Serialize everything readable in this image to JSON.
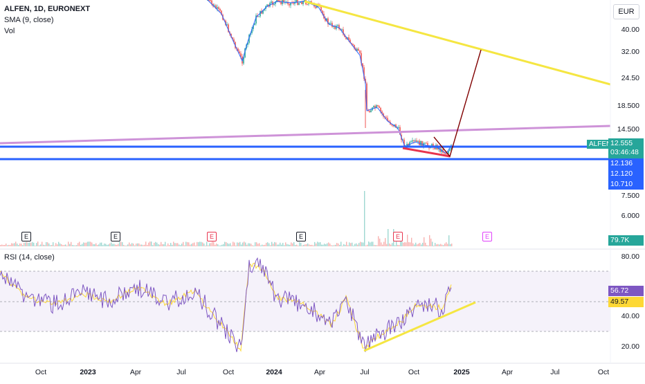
{
  "header": {
    "symbol_line": "ALFEN, 1D, EURONEXT",
    "sma_label": "SMA (9, close)",
    "vol_label": "Vol",
    "currency": "EUR"
  },
  "price_axis": [
    "40.00",
    "32.00",
    "24.50",
    "18.500",
    "14.500",
    "10.710",
    "7.500",
    "6.000"
  ],
  "rsi_axis": [
    "80.00",
    "40.00",
    "20.00"
  ],
  "price_tags": {
    "name": "ALFEN",
    "last": "12.555",
    "countdown": "03:46:48",
    "sma": "12.136",
    "line1": "12.120",
    "line2": "10.710",
    "volume": "79.7K",
    "rsi": "56.72",
    "rsi_ma": "49.57"
  },
  "rsi_label": "RSI (14, close)",
  "x_axis": [
    {
      "label": "Oct",
      "bold": false
    },
    {
      "label": "2023",
      "bold": true
    },
    {
      "label": "Apr",
      "bold": false
    },
    {
      "label": "Jul",
      "bold": false
    },
    {
      "label": "Oct",
      "bold": false
    },
    {
      "label": "2024",
      "bold": true
    },
    {
      "label": "Apr",
      "bold": false
    },
    {
      "label": "Jul",
      "bold": false
    },
    {
      "label": "Oct",
      "bold": false
    },
    {
      "label": "2025",
      "bold": true
    },
    {
      "label": "Apr",
      "bold": false
    },
    {
      "label": "Jul",
      "bold": false
    },
    {
      "label": "Oct",
      "bold": false
    }
  ],
  "earnings_markers": [
    {
      "label": "E",
      "style": "normal"
    },
    {
      "label": "E",
      "style": "normal"
    },
    {
      "label": "E",
      "style": "red"
    },
    {
      "label": "E",
      "style": "normal"
    },
    {
      "label": "E",
      "style": "red"
    },
    {
      "label": "E",
      "style": "pink"
    }
  ],
  "colors": {
    "up": "#26a69a",
    "down": "#ef5350",
    "sma": "#2962ff",
    "rsi": "#7e57c2",
    "rsi_ma": "#fdd835",
    "trend_yellow": "#f5e642",
    "trend_violet": "#ce93d8",
    "support_blue": "#2962ff",
    "projection": "#800000",
    "wedge_red": "#e8344e"
  }
}
